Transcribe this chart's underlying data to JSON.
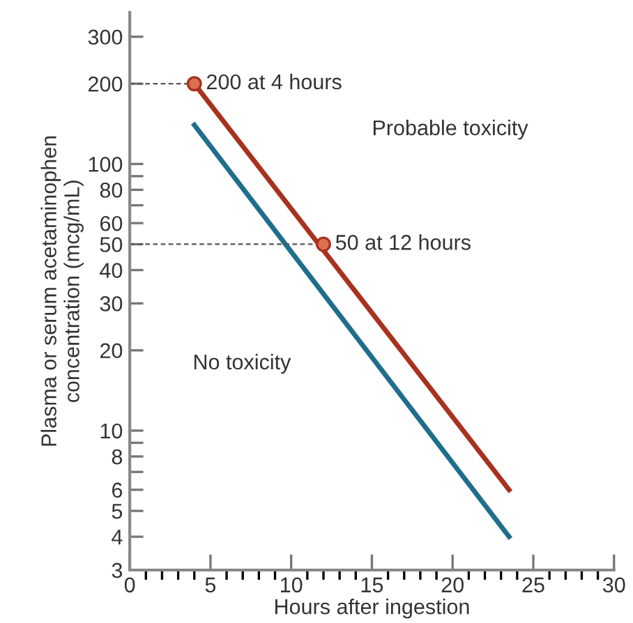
{
  "chart_data": {
    "type": "line",
    "xlabel": "Hours after ingestion",
    "ylabel": "Plasma or serum acetaminophen\nconcentration (mcg/mL)",
    "log": "y",
    "xlim": [
      0,
      30
    ],
    "xticks": [
      0,
      5,
      10,
      15,
      20,
      25,
      30
    ],
    "ylim": [
      3,
      370
    ],
    "yticks": [
      3,
      4,
      5,
      6,
      {
        "value": 7,
        "label": null
      },
      8,
      {
        "value": 9,
        "label": null
      },
      10,
      20,
      30,
      40,
      50,
      60,
      {
        "value": 70,
        "label": null
      },
      80,
      {
        "value": 90,
        "label": null
      },
      100,
      200,
      300
    ],
    "grid": false,
    "legend": false,
    "series": [
      {
        "color": "#a8321e",
        "x": [
          4,
          23.5
        ],
        "values": [
          200,
          6
        ]
      },
      {
        "color": "#1f6e8c",
        "x": [
          4,
          23.5
        ],
        "values": [
          140,
          4
        ]
      },
      {
        "color": "#555555",
        "line_style": "dashed",
        "x": [
          0,
          4
        ],
        "values": [
          200,
          200
        ]
      },
      {
        "color": "#555555",
        "line_style": "dashed",
        "x": [
          0,
          12
        ],
        "values": [
          50,
          50
        ]
      },
      {
        "type": "scatter",
        "color": "#d9704f",
        "marker": "circle",
        "x": [
          4,
          12
        ],
        "values": [
          200,
          50
        ]
      }
    ],
    "annotations": [
      {
        "text": "200 at 4 hours",
        "x": 4,
        "y": 200
      },
      {
        "text": "50 at 12 hours",
        "x": 12,
        "y": 50
      },
      "Probable toxicity",
      "No toxicity"
    ]
  }
}
